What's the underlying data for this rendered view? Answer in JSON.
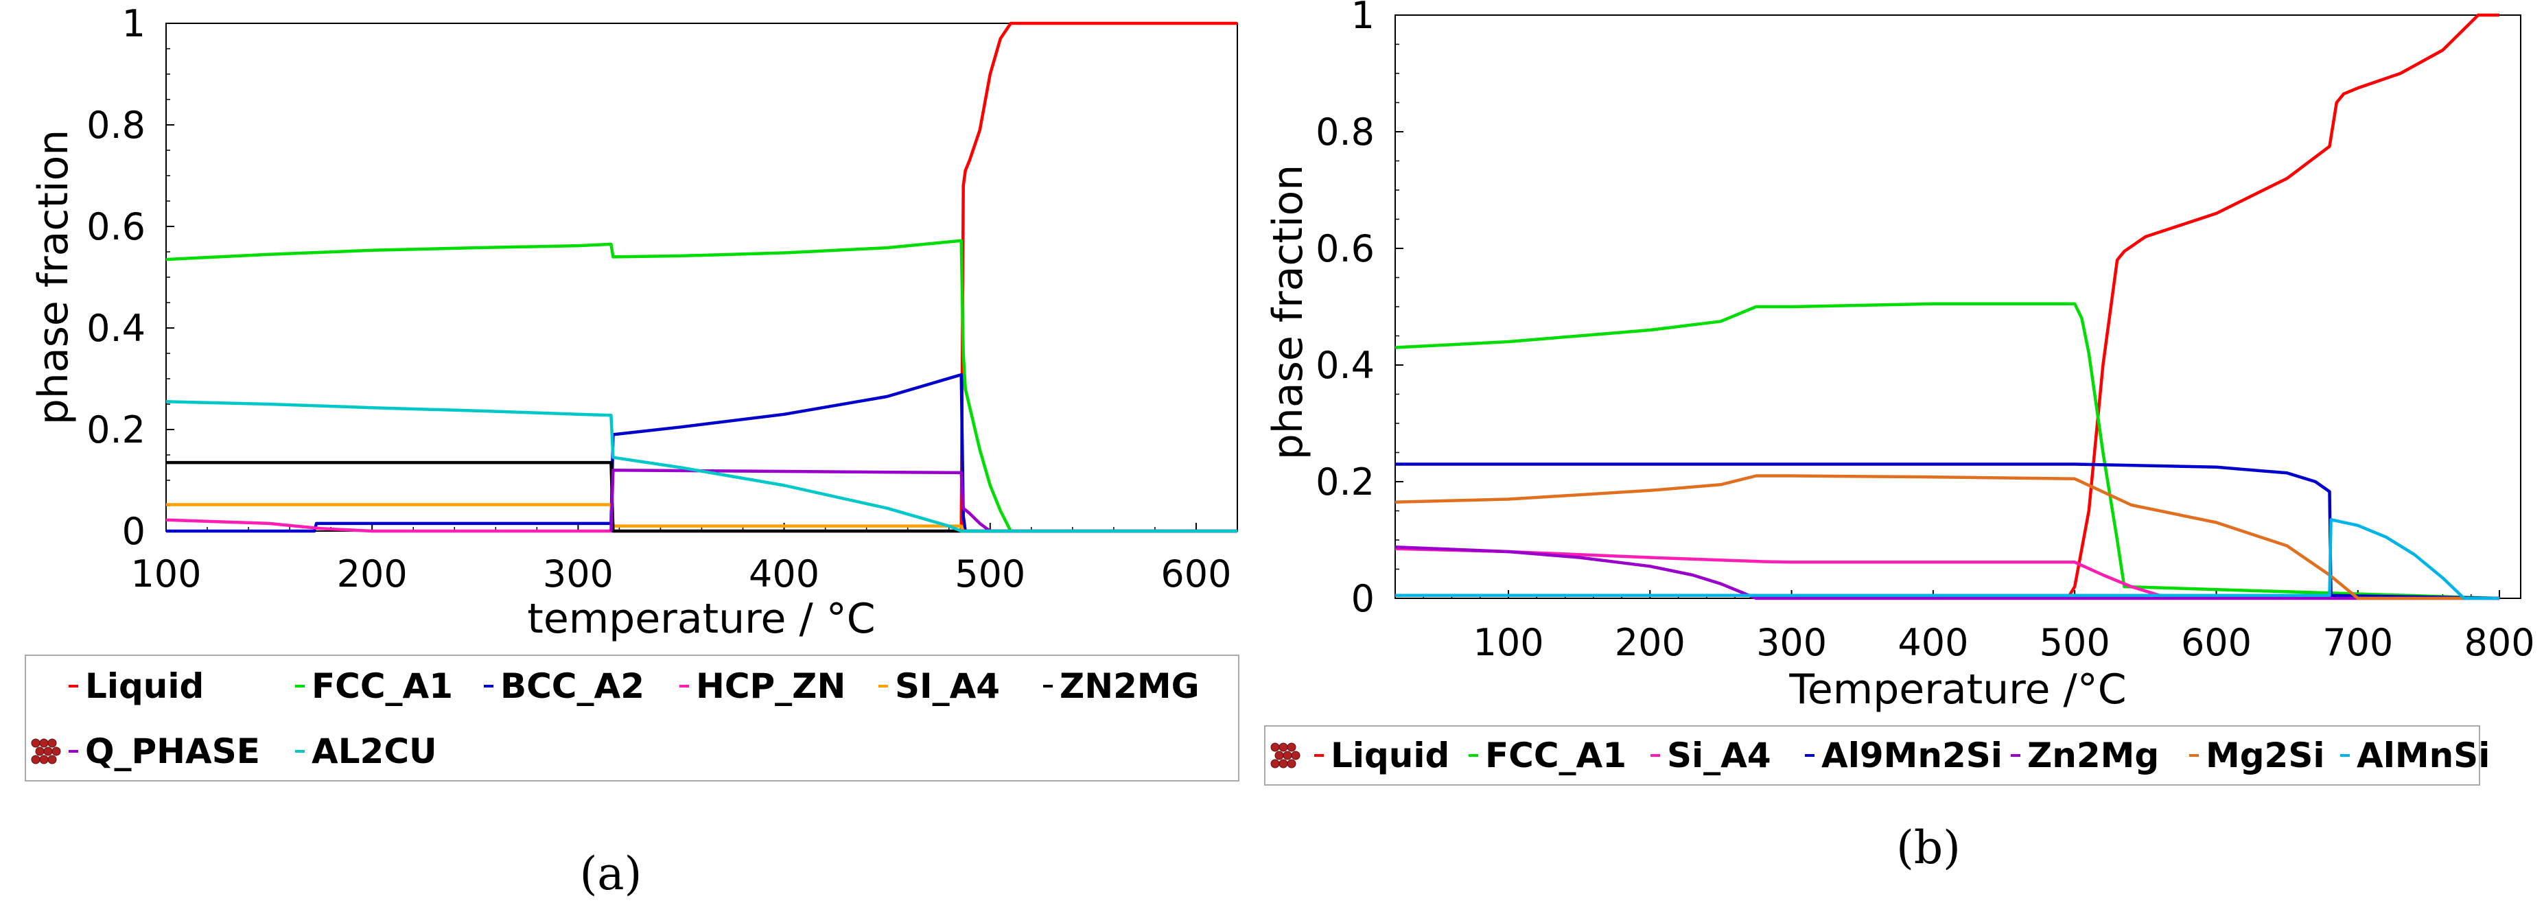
{
  "chart_data": [
    {
      "type": "line",
      "panel": "(a)",
      "xlabel": "temperature / °C",
      "ylabel": "phase fraction",
      "xlim": [
        100,
        620
      ],
      "ylim": [
        0,
        1
      ],
      "xticks": [
        "100",
        "200",
        "300",
        "400",
        "500",
        "600"
      ],
      "yticks": [
        "0",
        "0.2",
        "0.4",
        "0.6",
        "0.8",
        "1"
      ],
      "legend_glyph": "‥",
      "series": [
        {
          "name": "Liquid",
          "color": "#ff0000",
          "x": [
            486,
            487,
            488,
            490,
            495,
            500,
            505,
            510,
            520,
            620
          ],
          "y": [
            0,
            0.68,
            0.71,
            0.73,
            0.79,
            0.9,
            0.97,
            1.0,
            1.0,
            1.0
          ]
        },
        {
          "name": "FCC_A1",
          "color": "#00dd00",
          "x": [
            100,
            150,
            200,
            250,
            300,
            316,
            317,
            350,
            400,
            450,
            486,
            487,
            488,
            495,
            500,
            505,
            510,
            620
          ],
          "y": [
            0.535,
            0.545,
            0.553,
            0.558,
            0.562,
            0.565,
            0.54,
            0.542,
            0.548,
            0.558,
            0.572,
            0.35,
            0.28,
            0.16,
            0.09,
            0.04,
            0.0,
            0.0
          ]
        },
        {
          "name": "BCC_A2",
          "color": "#0000cc",
          "x": [
            100,
            172,
            173,
            316,
            317,
            350,
            400,
            450,
            486,
            487,
            488,
            620
          ],
          "y": [
            0.0,
            0.0,
            0.015,
            0.015,
            0.19,
            0.205,
            0.23,
            0.265,
            0.308,
            0.03,
            0.0,
            0.0
          ]
        },
        {
          "name": "HCP_ZN",
          "color": "#ff1eb4",
          "x": [
            100,
            150,
            175,
            200,
            620
          ],
          "y": [
            0.022,
            0.015,
            0.005,
            0.0,
            0.0
          ]
        },
        {
          "name": "SI_A4",
          "color": "#ffa000",
          "x": [
            100,
            316,
            317,
            486,
            487,
            620
          ],
          "y": [
            0.052,
            0.052,
            0.01,
            0.01,
            0.0,
            0.0
          ]
        },
        {
          "name": "ZN2MG",
          "color": "#000000",
          "x": [
            100,
            316,
            317,
            486,
            487,
            620
          ],
          "y": [
            0.135,
            0.135,
            0.0,
            0.0,
            0.0,
            0.0
          ]
        },
        {
          "name": "Q_PHASE",
          "color": "#9a00cc",
          "x": [
            316,
            317,
            486,
            487,
            490,
            495,
            500,
            620
          ],
          "y": [
            0.0,
            0.12,
            0.115,
            0.045,
            0.035,
            0.015,
            0.0,
            0.0
          ]
        },
        {
          "name": "AL2CU",
          "color": "#00c8c8",
          "x": [
            100,
            150,
            200,
            250,
            300,
            316,
            317,
            350,
            400,
            450,
            480,
            486,
            487,
            620
          ],
          "y": [
            0.255,
            0.25,
            0.243,
            0.237,
            0.23,
            0.228,
            0.145,
            0.125,
            0.09,
            0.045,
            0.01,
            0.0,
            0.0,
            0.0
          ]
        }
      ]
    },
    {
      "type": "line",
      "panel": "(b)",
      "xlabel": "Temperature /°C",
      "ylabel": "phase fraction",
      "xlim": [
        20,
        815
      ],
      "ylim": [
        0,
        1
      ],
      "xticks": [
        "100",
        "200",
        "300",
        "400",
        "500",
        "600",
        "700",
        "800"
      ],
      "yticks": [
        "0",
        "0.2",
        "0.4",
        "0.6",
        "0.8",
        "1"
      ],
      "legend_glyph": "‥",
      "series": [
        {
          "name": "Liquid",
          "color": "#ff0000",
          "x": [
            495,
            500,
            510,
            520,
            530,
            535,
            550,
            600,
            650,
            680,
            685,
            690,
            700,
            730,
            760,
            785,
            800
          ],
          "y": [
            0,
            0.02,
            0.15,
            0.4,
            0.58,
            0.595,
            0.62,
            0.66,
            0.72,
            0.775,
            0.85,
            0.865,
            0.875,
            0.9,
            0.94,
            1.0,
            1.0
          ]
        },
        {
          "name": "FCC_A1",
          "color": "#00dd00",
          "x": [
            20,
            100,
            200,
            250,
            275,
            300,
            400,
            500,
            505,
            510,
            520,
            530,
            535,
            800
          ],
          "y": [
            0.43,
            0.44,
            0.46,
            0.475,
            0.5,
            0.5,
            0.505,
            0.505,
            0.48,
            0.42,
            0.25,
            0.1,
            0.02,
            0.0
          ]
        },
        {
          "name": "Si_A4",
          "color": "#ff1eb4",
          "x": [
            20,
            100,
            200,
            280,
            300,
            400,
            500,
            520,
            540,
            560,
            800
          ],
          "y": [
            0.085,
            0.08,
            0.07,
            0.063,
            0.062,
            0.062,
            0.062,
            0.04,
            0.02,
            0.005,
            0.0
          ]
        },
        {
          "name": "Al9Mn2Si",
          "color": "#0000cc",
          "x": [
            20,
            300,
            500,
            600,
            650,
            670,
            680,
            681,
            800
          ],
          "y": [
            0.23,
            0.23,
            0.23,
            0.225,
            0.215,
            0.2,
            0.183,
            0.005,
            0.0
          ]
        },
        {
          "name": "Zn2Mg",
          "color": "#9a00cc",
          "x": [
            20,
            100,
            150,
            200,
            230,
            250,
            265,
            275,
            800
          ],
          "y": [
            0.088,
            0.08,
            0.07,
            0.055,
            0.04,
            0.025,
            0.01,
            0.0,
            0.0
          ]
        },
        {
          "name": "Mg2Si",
          "color": "#e07020",
          "x": [
            20,
            100,
            200,
            250,
            275,
            300,
            400,
            500,
            540,
            600,
            650,
            680,
            700,
            780
          ],
          "y": [
            0.165,
            0.17,
            0.185,
            0.195,
            0.21,
            0.21,
            0.208,
            0.205,
            0.16,
            0.13,
            0.09,
            0.04,
            0.0,
            0.0
          ]
        },
        {
          "name": "AlMnSi",
          "color": "#00b4e8",
          "x": [
            20,
            680,
            681,
            700,
            720,
            740,
            760,
            775,
            800
          ],
          "y": [
            0.005,
            0.005,
            0.135,
            0.125,
            0.105,
            0.075,
            0.035,
            0.0,
            0.0
          ]
        }
      ]
    }
  ]
}
